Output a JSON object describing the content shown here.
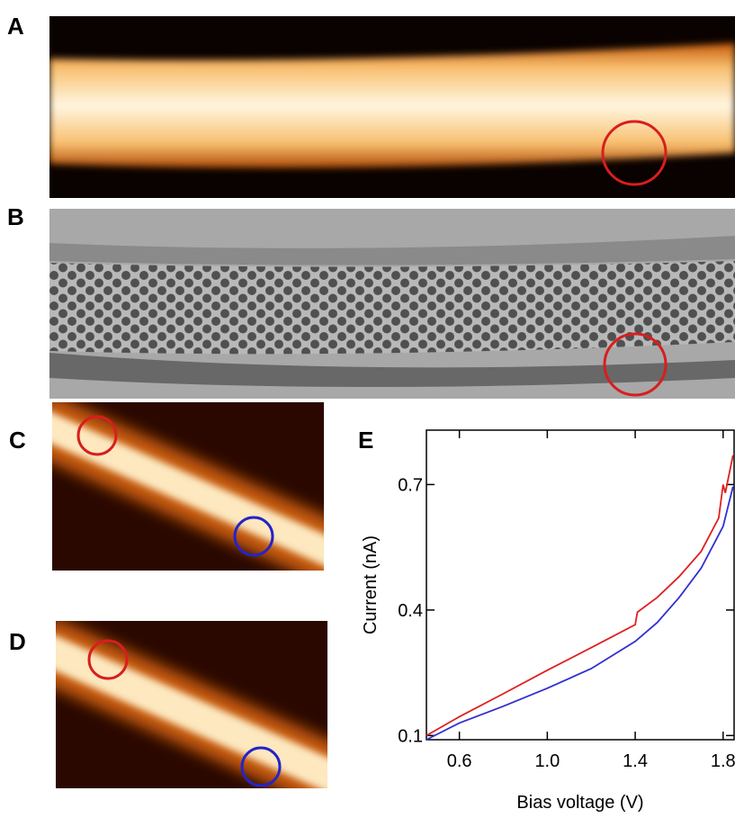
{
  "panel_labels": [
    "A",
    "B",
    "C",
    "D"
  ],
  "chart_data": {
    "type": "line",
    "title": "E",
    "x_label": "Bias voltage (V)",
    "y_label": "Current (nA)",
    "xlim": [
      0.45,
      1.85
    ],
    "ylim": [
      0.09,
      0.83
    ],
    "xticks": [
      0.6,
      {
        "value": 1,
        "label": "1.0"
      },
      1.4,
      1.8
    ],
    "yticks": [
      0.1,
      0.4,
      0.7
    ],
    "series": [
      {
        "color": "#e02020",
        "x": [
          0.45,
          0.6,
          0.8,
          1.0,
          1.2,
          1.4,
          1.41,
          1.5,
          1.6,
          1.7,
          1.78,
          1.8,
          1.81,
          1.845
        ],
        "values": [
          0.1,
          0.145,
          0.2,
          0.256,
          0.31,
          0.365,
          0.395,
          0.43,
          0.48,
          0.54,
          0.62,
          0.7,
          0.68,
          0.77
        ]
      },
      {
        "color": "#3030d0",
        "x": [
          0.45,
          0.6,
          0.8,
          1.0,
          1.2,
          1.4,
          1.5,
          1.6,
          1.7,
          1.8,
          1.845
        ],
        "values": [
          0.09,
          0.13,
          0.17,
          0.213,
          0.26,
          0.325,
          0.37,
          0.43,
          0.5,
          0.6,
          0.695
        ]
      }
    ]
  }
}
